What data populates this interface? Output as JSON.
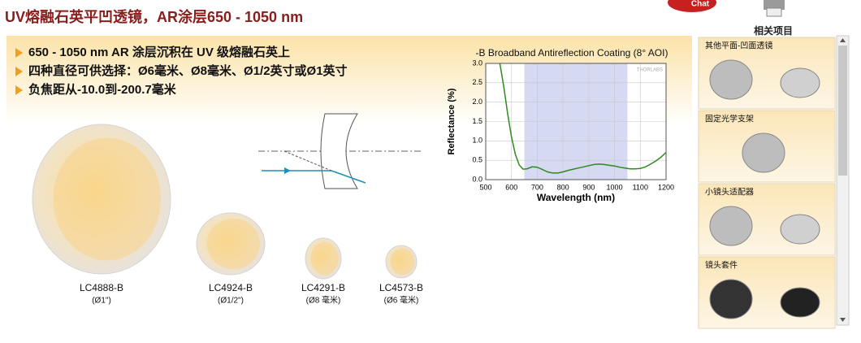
{
  "header": {
    "title": "UV熔融石英平凹透镜，AR涂层650 - 1050 nm",
    "chat": "Chat",
    "related": "相关项目"
  },
  "bullets": [
    "650 - 1050 nm AR 涂层沉积在 UV 级熔融石英上",
    "四种直径可供选择：Ø6毫米、Ø8毫米、Ø1/2英寸或Ø1英寸",
    "负焦距从-10.0到-200.7毫米"
  ],
  "products": [
    {
      "name": "LC4888-B",
      "size": "(Ø1\")"
    },
    {
      "name": "LC4924-B",
      "size": "(Ø1/2\")"
    },
    {
      "name": "LC4291-B",
      "size": "(Ø8 毫米)"
    },
    {
      "name": "LC4573-B",
      "size": "(Ø6 毫米)"
    }
  ],
  "chart_data": {
    "type": "line",
    "title": "-B Broadband Antireflection Coating (8° AOI)",
    "x_label": "Wavelength (nm)",
    "y_label": "Reflectance (%)",
    "watermark": "THORLABS",
    "x": [
      555,
      570,
      585,
      600,
      615,
      630,
      645,
      660,
      680,
      700,
      720,
      740,
      760,
      780,
      800,
      820,
      840,
      860,
      880,
      900,
      920,
      940,
      960,
      980,
      1000,
      1020,
      1040,
      1060,
      1080,
      1100,
      1120,
      1140,
      1160,
      1180,
      1200
    ],
    "series": [
      {
        "color": "#2e8b1e",
        "values": [
          3.0,
          2.4,
          1.7,
          1.1,
          0.65,
          0.38,
          0.27,
          0.28,
          0.33,
          0.32,
          0.26,
          0.2,
          0.17,
          0.17,
          0.2,
          0.24,
          0.27,
          0.3,
          0.33,
          0.36,
          0.39,
          0.4,
          0.39,
          0.37,
          0.35,
          0.32,
          0.3,
          0.28,
          0.28,
          0.29,
          0.33,
          0.4,
          0.48,
          0.58,
          0.7
        ]
      }
    ],
    "xlim": [
      500,
      1200
    ],
    "xticks": [
      500,
      600,
      700,
      800,
      900,
      1000,
      1100,
      1200
    ],
    "ylim": [
      0,
      3
    ],
    "yticks": [
      {
        "value": 0,
        "label": "0.0"
      },
      {
        "value": 0.5,
        "label": "0.5"
      },
      {
        "value": 1,
        "label": "1.0"
      },
      {
        "value": 1.5,
        "label": "1.5"
      },
      {
        "value": 2,
        "label": "2.0"
      },
      {
        "value": 2.5,
        "label": "2.5"
      },
      {
        "value": 3,
        "label": "3.0"
      }
    ],
    "shaded_range": [
      650,
      1050
    ],
    "shade_color": "#d6d9f2",
    "grid": true
  },
  "sidebar": [
    {
      "label": "其他平面-凹面透镜"
    },
    {
      "label": "固定光学支架"
    },
    {
      "label": "小镜头适配器"
    },
    {
      "label": "镜头套件"
    }
  ]
}
